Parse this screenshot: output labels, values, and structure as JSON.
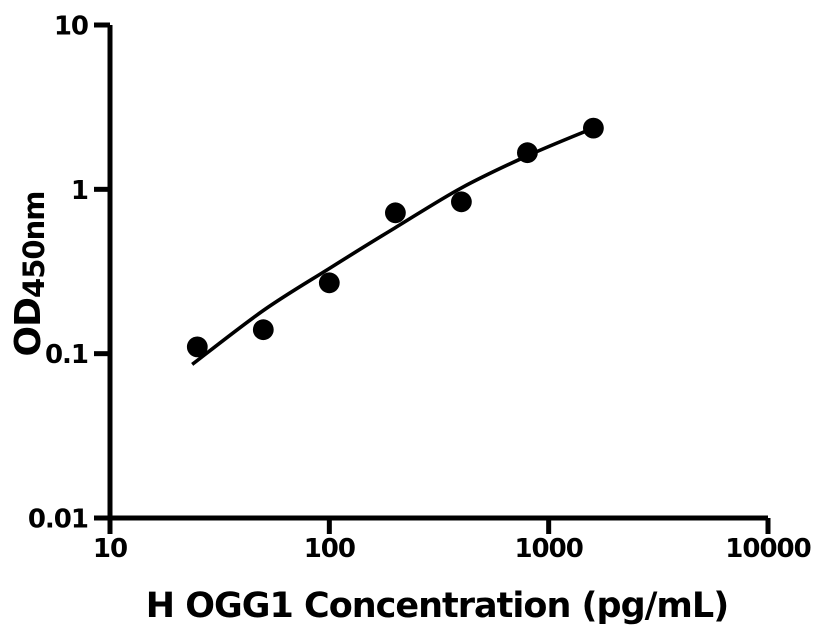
{
  "figure": {
    "background_color": "#ffffff",
    "ink_color": "#000000"
  },
  "chart_data": {
    "type": "scatter",
    "title": "",
    "xlabel": "H OGG1 Concentration (pg/mL)",
    "ylabel": {
      "main": "OD",
      "subscript": "450nm"
    },
    "x_scale": "log",
    "y_scale": "log",
    "xlim": [
      10,
      10000
    ],
    "ylim": [
      0.01,
      10
    ],
    "grid": false,
    "legend": null,
    "x_ticks": [
      {
        "value": 10,
        "label": "10"
      },
      {
        "value": 100,
        "label": "100"
      },
      {
        "value": 1000,
        "label": "1000"
      },
      {
        "value": 10000,
        "label": "10000"
      }
    ],
    "y_ticks": [
      {
        "value": 0.01,
        "label": "0.01"
      },
      {
        "value": 0.1,
        "label": "0.1"
      },
      {
        "value": 1,
        "label": "1"
      },
      {
        "value": 10,
        "label": "10"
      }
    ],
    "series": [
      {
        "name": "standard-points",
        "type": "scatter",
        "marker": {
          "shape": "circle",
          "color": "#000000",
          "radius_px": 10.4
        },
        "points": [
          {
            "x": 25,
            "y": 0.11
          },
          {
            "x": 50,
            "y": 0.14
          },
          {
            "x": 100,
            "y": 0.27
          },
          {
            "x": 200,
            "y": 0.72
          },
          {
            "x": 400,
            "y": 0.84
          },
          {
            "x": 800,
            "y": 1.67
          },
          {
            "x": 1600,
            "y": 2.36
          }
        ]
      },
      {
        "name": "fitted-curve",
        "type": "line",
        "stroke_color": "#000000",
        "stroke_width_px": 3.6,
        "points": [
          {
            "x": 23.7,
            "y": 0.086
          },
          {
            "x": 50,
            "y": 0.183
          },
          {
            "x": 100,
            "y": 0.33
          },
          {
            "x": 200,
            "y": 0.585
          },
          {
            "x": 400,
            "y": 1.02
          },
          {
            "x": 800,
            "y": 1.6
          },
          {
            "x": 1600,
            "y": 2.36
          }
        ]
      }
    ]
  }
}
